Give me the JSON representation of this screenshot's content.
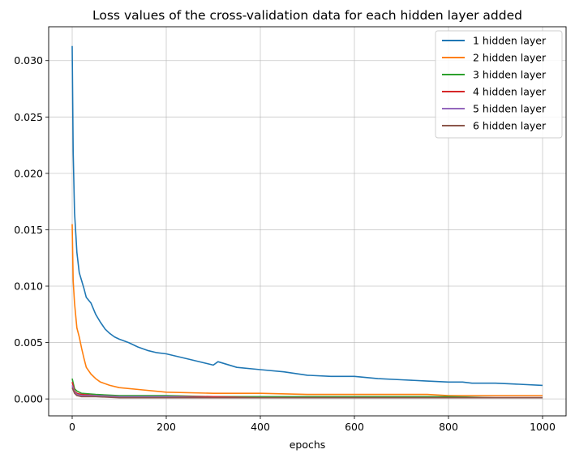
{
  "chart_data": {
    "type": "line",
    "title": "Loss values of the cross-validation data for each hidden layer added",
    "xlabel": "epochs",
    "ylabel": "",
    "xlim": [
      -50,
      1050
    ],
    "ylim": [
      -0.0015,
      0.033
    ],
    "x_ticks": [
      0,
      200,
      400,
      600,
      800,
      1000
    ],
    "x_tick_labels": [
      "0",
      "200",
      "400",
      "600",
      "800",
      "1000"
    ],
    "y_ticks": [
      0.0,
      0.005,
      0.01,
      0.015,
      0.02,
      0.025,
      0.03
    ],
    "y_tick_labels": [
      "0.000",
      "0.005",
      "0.010",
      "0.015",
      "0.020",
      "0.025",
      "0.030"
    ],
    "grid": true,
    "legend_position": "top-right",
    "series": [
      {
        "name": "1 hidden layer",
        "color": "#1f77b4",
        "x": [
          0,
          2,
          5,
          8,
          10,
          15,
          20,
          25,
          30,
          40,
          50,
          60,
          70,
          80,
          90,
          100,
          120,
          140,
          160,
          180,
          200,
          250,
          300,
          310,
          350,
          400,
          450,
          500,
          550,
          600,
          650,
          700,
          750,
          800,
          830,
          850,
          900,
          950,
          1000
        ],
        "y": [
          0.0313,
          0.022,
          0.0165,
          0.0145,
          0.013,
          0.0112,
          0.0105,
          0.0098,
          0.009,
          0.0085,
          0.0075,
          0.0068,
          0.0062,
          0.0058,
          0.0055,
          0.0053,
          0.005,
          0.0046,
          0.0043,
          0.0041,
          0.004,
          0.0035,
          0.003,
          0.0033,
          0.0028,
          0.0026,
          0.0024,
          0.0021,
          0.002,
          0.002,
          0.0018,
          0.0017,
          0.0016,
          0.0015,
          0.0015,
          0.0014,
          0.0014,
          0.0013,
          0.0012
        ]
      },
      {
        "name": "2 hidden layer",
        "color": "#ff7f0e",
        "x": [
          0,
          2,
          5,
          8,
          10,
          15,
          20,
          25,
          30,
          40,
          50,
          60,
          80,
          100,
          150,
          200,
          300,
          400,
          500,
          600,
          700,
          755,
          800,
          900,
          1000
        ],
        "y": [
          0.0155,
          0.0105,
          0.0085,
          0.0072,
          0.0063,
          0.0055,
          0.0045,
          0.0036,
          0.0028,
          0.0022,
          0.0018,
          0.0015,
          0.0012,
          0.001,
          0.0008,
          0.0006,
          0.0005,
          0.0005,
          0.0004,
          0.0004,
          0.0004,
          0.0004,
          0.0003,
          0.0003,
          0.0003
        ]
      },
      {
        "name": "3 hidden layer",
        "color": "#2ca02c",
        "x": [
          0,
          5,
          10,
          20,
          50,
          100,
          200,
          300,
          400,
          500,
          600,
          700,
          800,
          900,
          1000
        ],
        "y": [
          0.0018,
          0.0009,
          0.0007,
          0.0005,
          0.0004,
          0.0003,
          0.0003,
          0.0002,
          0.0002,
          0.0002,
          0.0002,
          0.0002,
          0.0002,
          0.0001,
          0.0001
        ]
      },
      {
        "name": "4 hidden layer",
        "color": "#d62728",
        "x": [
          0,
          5,
          10,
          20,
          50,
          100,
          200,
          300,
          400,
          500,
          600,
          700,
          800,
          900,
          1000
        ],
        "y": [
          0.0015,
          0.0007,
          0.0005,
          0.0004,
          0.0003,
          0.0002,
          0.0002,
          0.0002,
          0.0001,
          0.0001,
          0.0001,
          0.0001,
          0.0001,
          0.0001,
          0.0001
        ]
      },
      {
        "name": "5 hidden layer",
        "color": "#9467bd",
        "x": [
          0,
          5,
          10,
          20,
          50,
          100,
          200,
          300,
          400,
          500,
          600,
          700,
          800,
          900,
          1000
        ],
        "y": [
          0.0012,
          0.0006,
          0.0004,
          0.0003,
          0.0003,
          0.0002,
          0.0002,
          0.0001,
          0.0001,
          0.0001,
          0.0001,
          0.0001,
          0.0001,
          0.0001,
          0.0001
        ]
      },
      {
        "name": "6 hidden layer",
        "color": "#8c564b",
        "x": [
          0,
          5,
          10,
          20,
          50,
          100,
          200,
          300,
          400,
          500,
          600,
          700,
          800,
          900,
          1000
        ],
        "y": [
          0.001,
          0.0005,
          0.0003,
          0.0002,
          0.0002,
          0.0001,
          0.0001,
          0.0001,
          0.0001,
          0.0001,
          0.0001,
          0.0001,
          0.0001,
          0.0001,
          0.0001
        ]
      }
    ]
  }
}
